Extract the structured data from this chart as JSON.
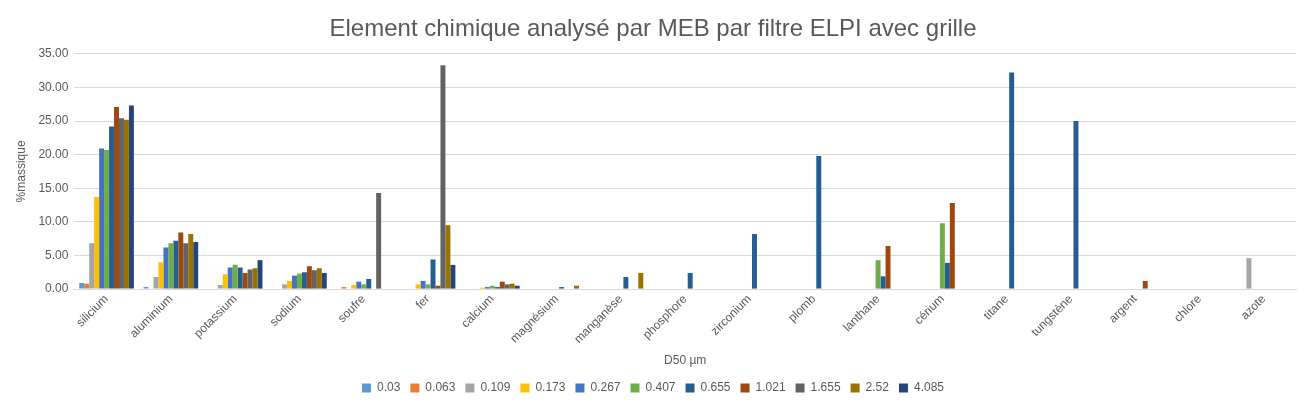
{
  "chart_data": {
    "type": "bar",
    "title": "Element chimique analysé par MEB par filtre ELPI avec grille",
    "xlabel": "D50 µm",
    "ylabel": "%massique",
    "categories": [
      "silicium",
      "aluminium",
      "potassium",
      "sodium",
      "soufre",
      "fer",
      "calcium",
      "magnésium",
      "manganèse",
      "phosphore",
      "zirconium",
      "plomb",
      "lanthane",
      "cérium",
      "titane",
      "tungstène",
      "argent",
      "chlore",
      "azote"
    ],
    "series": [
      {
        "name": "0.03",
        "color": "#5b9bd5",
        "values": [
          0.9,
          0.3,
          null,
          null,
          null,
          null,
          null,
          null,
          null,
          null,
          null,
          null,
          null,
          null,
          null,
          null,
          null,
          null,
          null
        ]
      },
      {
        "name": "0.063",
        "color": "#ed7d31",
        "values": [
          0.8,
          null,
          null,
          null,
          0.3,
          null,
          null,
          null,
          null,
          null,
          null,
          null,
          null,
          null,
          null,
          null,
          null,
          null,
          null
        ]
      },
      {
        "name": "0.109",
        "color": "#a5a5a5",
        "values": [
          6.8,
          1.8,
          0.6,
          0.7,
          null,
          null,
          null,
          null,
          null,
          null,
          null,
          null,
          null,
          null,
          null,
          null,
          null,
          null,
          4.6
        ]
      },
      {
        "name": "0.173",
        "color": "#ffc000",
        "values": [
          13.7,
          4.0,
          2.2,
          1.2,
          0.6,
          0.7,
          0.2,
          null,
          null,
          null,
          null,
          null,
          null,
          null,
          null,
          null,
          null,
          null,
          null
        ]
      },
      {
        "name": "0.267",
        "color": "#4472c4",
        "values": [
          20.9,
          6.2,
          3.2,
          2.0,
          1.1,
          1.2,
          0.3,
          null,
          null,
          null,
          null,
          null,
          null,
          null,
          null,
          null,
          null,
          null,
          null
        ]
      },
      {
        "name": "0.407",
        "color": "#70ad47",
        "values": [
          20.7,
          6.8,
          3.6,
          2.3,
          0.7,
          0.7,
          0.5,
          null,
          null,
          null,
          null,
          null,
          4.3,
          9.8,
          null,
          null,
          null,
          null,
          null
        ]
      },
      {
        "name": "0.655",
        "color": "#255e91",
        "values": [
          24.2,
          7.2,
          3.2,
          2.5,
          1.5,
          4.4,
          0.3,
          0.3,
          1.8,
          2.4,
          8.2,
          19.8,
          1.9,
          3.9,
          32.2,
          25.0,
          null,
          null,
          null
        ]
      },
      {
        "name": "1.021",
        "color": "#9e480e",
        "values": [
          27.1,
          8.4,
          2.4,
          3.4,
          null,
          0.5,
          1.1,
          null,
          null,
          null,
          null,
          null,
          6.4,
          12.8,
          null,
          null,
          1.2,
          null,
          null
        ]
      },
      {
        "name": "1.655",
        "color": "#636363",
        "values": [
          25.4,
          6.8,
          2.9,
          2.8,
          14.3,
          33.3,
          0.7,
          null,
          null,
          null,
          null,
          null,
          null,
          null,
          null,
          null,
          null,
          null,
          null
        ]
      },
      {
        "name": "2.52",
        "color": "#997300",
        "values": [
          25.2,
          8.2,
          3.1,
          3.1,
          null,
          9.5,
          0.8,
          0.5,
          2.4,
          null,
          null,
          null,
          null,
          null,
          null,
          null,
          null,
          null,
          null
        ]
      },
      {
        "name": "4.085",
        "color": "#264478",
        "values": [
          27.3,
          7.0,
          4.3,
          2.4,
          null,
          3.6,
          0.5,
          null,
          null,
          null,
          null,
          null,
          null,
          null,
          null,
          null,
          null,
          null,
          null
        ]
      }
    ],
    "ylim": [
      0,
      35
    ],
    "yticks": [
      {
        "value": 0,
        "label": "0.00"
      },
      {
        "value": 5,
        "label": "5.00"
      },
      {
        "value": 10,
        "label": "10.00"
      },
      {
        "value": 15,
        "label": "15.00"
      },
      {
        "value": 20,
        "label": "20.00"
      },
      {
        "value": 25,
        "label": "25.00"
      },
      {
        "value": 30,
        "label": "30.00"
      },
      {
        "value": 35,
        "label": "35.00"
      }
    ],
    "grid": "y",
    "legend": "bottom"
  }
}
